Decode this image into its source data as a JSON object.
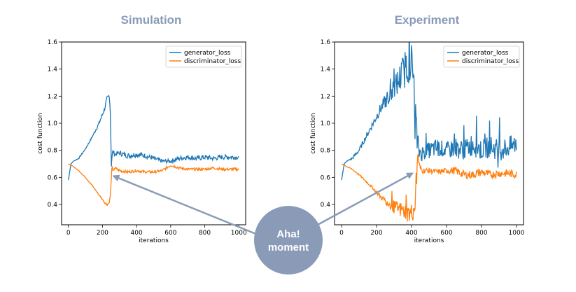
{
  "chart_data": [
    {
      "type": "line",
      "title": "Simulation",
      "xlabel": "iterations",
      "ylabel": "cost function",
      "xlim": [
        -40,
        1040
      ],
      "ylim": [
        0.25,
        1.6
      ],
      "xticks": [
        0,
        200,
        400,
        600,
        800,
        1000
      ],
      "yticks": [
        0.4,
        0.6,
        0.8,
        1.0,
        1.2,
        1.4,
        1.6
      ],
      "xtick_labels": [
        "0",
        "200",
        "400",
        "600",
        "800",
        "1000"
      ],
      "ytick_labels": [
        "0.4",
        "0.6",
        "0.8",
        "1.0",
        "1.2",
        "1.4",
        "1.6"
      ],
      "legend": {
        "position": "top-right",
        "entries": [
          "generator_loss",
          "discriminator_loss"
        ]
      },
      "series": [
        {
          "name": "generator_loss",
          "color": "#1f77b4",
          "x": [
            0,
            15,
            30,
            60,
            100,
            140,
            180,
            210,
            225,
            238,
            245,
            248,
            252,
            256,
            262,
            270,
            300,
            350,
            400,
            450,
            500,
            550,
            600,
            650,
            700,
            750,
            800,
            850,
            900,
            950,
            1000
          ],
          "values": [
            0.58,
            0.7,
            0.72,
            0.74,
            0.81,
            0.9,
            1.0,
            1.1,
            1.17,
            1.2,
            1.15,
            0.95,
            0.68,
            0.76,
            0.8,
            0.77,
            0.78,
            0.76,
            0.77,
            0.76,
            0.74,
            0.72,
            0.72,
            0.74,
            0.75,
            0.74,
            0.75,
            0.74,
            0.75,
            0.75,
            0.75
          ],
          "noise": [
            0.0,
            0.0,
            0.0,
            0.004,
            0.006,
            0.008,
            0.012,
            0.02,
            0.025,
            0.02,
            0.02,
            0.0,
            0.0,
            0.015,
            0.015,
            0.015,
            0.018,
            0.02,
            0.02,
            0.018,
            0.016,
            0.015,
            0.015,
            0.018,
            0.018,
            0.018,
            0.018,
            0.018,
            0.018,
            0.018,
            0.018
          ]
        },
        {
          "name": "discriminator_loss",
          "color": "#ff7f0e",
          "x": [
            0,
            30,
            60,
            100,
            140,
            180,
            210,
            225,
            238,
            245,
            250,
            256,
            262,
            270,
            300,
            350,
            400,
            450,
            500,
            550,
            600,
            650,
            700,
            750,
            800,
            850,
            900,
            950,
            1000
          ],
          "values": [
            0.7,
            0.68,
            0.65,
            0.6,
            0.54,
            0.47,
            0.42,
            0.4,
            0.41,
            0.45,
            0.55,
            0.69,
            0.64,
            0.67,
            0.65,
            0.64,
            0.65,
            0.64,
            0.64,
            0.65,
            0.69,
            0.67,
            0.66,
            0.66,
            0.66,
            0.67,
            0.66,
            0.66,
            0.66
          ],
          "noise": [
            0.0,
            0.002,
            0.002,
            0.003,
            0.004,
            0.005,
            0.008,
            0.01,
            0.01,
            0.005,
            0.0,
            0.0,
            0.008,
            0.01,
            0.01,
            0.01,
            0.01,
            0.01,
            0.01,
            0.01,
            0.01,
            0.01,
            0.01,
            0.01,
            0.01,
            0.01,
            0.01,
            0.01,
            0.01
          ]
        }
      ],
      "annotation_point": {
        "x": 265,
        "y": 0.61
      }
    },
    {
      "type": "line",
      "title": "Experiment",
      "xlabel": "iterations",
      "ylabel": "cost function",
      "xlim": [
        -40,
        1040
      ],
      "ylim": [
        0.25,
        1.6
      ],
      "xticks": [
        0,
        200,
        400,
        600,
        800,
        1000
      ],
      "yticks": [
        0.4,
        0.6,
        0.8,
        1.0,
        1.2,
        1.4,
        1.6
      ],
      "xtick_labels": [
        "0",
        "200",
        "400",
        "600",
        "800",
        "1000"
      ],
      "ytick_labels": [
        "0.4",
        "0.6",
        "0.8",
        "1.0",
        "1.2",
        "1.4",
        "1.6"
      ],
      "legend": {
        "position": "top-right",
        "entries": [
          "generator_loss",
          "discriminator_loss"
        ]
      },
      "series": [
        {
          "name": "generator_loss",
          "color": "#1f77b4",
          "x": [
            0,
            15,
            30,
            60,
            100,
            140,
            180,
            220,
            260,
            300,
            340,
            370,
            390,
            410,
            420,
            430,
            440,
            460,
            500,
            550,
            600,
            650,
            700,
            750,
            800,
            850,
            900,
            950,
            1000
          ],
          "values": [
            0.58,
            0.7,
            0.72,
            0.74,
            0.8,
            0.9,
            1.0,
            1.1,
            1.18,
            1.25,
            1.35,
            1.42,
            1.48,
            1.35,
            1.1,
            0.9,
            0.8,
            0.78,
            0.8,
            0.82,
            0.8,
            0.82,
            0.8,
            0.85,
            0.8,
            0.83,
            0.8,
            0.82,
            0.85
          ],
          "noise": [
            0.0,
            0.0,
            0.0,
            0.01,
            0.015,
            0.02,
            0.03,
            0.04,
            0.06,
            0.08,
            0.12,
            0.15,
            0.18,
            0.2,
            0.2,
            0.15,
            0.08,
            0.06,
            0.06,
            0.07,
            0.06,
            0.08,
            0.07,
            0.09,
            0.08,
            0.08,
            0.08,
            0.08,
            0.08
          ]
        },
        {
          "name": "discriminator_loss",
          "color": "#ff7f0e",
          "x": [
            0,
            30,
            60,
            100,
            140,
            180,
            220,
            260,
            300,
            340,
            370,
            390,
            410,
            420,
            430,
            436,
            442,
            450,
            460,
            500,
            550,
            600,
            650,
            700,
            750,
            800,
            850,
            900,
            950,
            1000
          ],
          "values": [
            0.7,
            0.68,
            0.66,
            0.62,
            0.57,
            0.52,
            0.46,
            0.42,
            0.38,
            0.36,
            0.34,
            0.33,
            0.35,
            0.4,
            0.6,
            0.8,
            0.7,
            0.67,
            0.65,
            0.65,
            0.64,
            0.65,
            0.65,
            0.62,
            0.62,
            0.64,
            0.62,
            0.63,
            0.63,
            0.62
          ],
          "noise": [
            0.0,
            0.003,
            0.004,
            0.005,
            0.007,
            0.01,
            0.015,
            0.03,
            0.05,
            0.06,
            0.07,
            0.07,
            0.07,
            0.06,
            0.05,
            0.03,
            0.03,
            0.02,
            0.02,
            0.02,
            0.02,
            0.02,
            0.03,
            0.03,
            0.03,
            0.03,
            0.03,
            0.03,
            0.03,
            0.03
          ]
        }
      ],
      "annotation_point": {
        "x": 405,
        "y": 0.63
      }
    }
  ],
  "callout": {
    "line1": "Aha!",
    "line2": "moment",
    "bubble_color": "#8a9bb8",
    "arrow_color": "#8a9bb8"
  }
}
